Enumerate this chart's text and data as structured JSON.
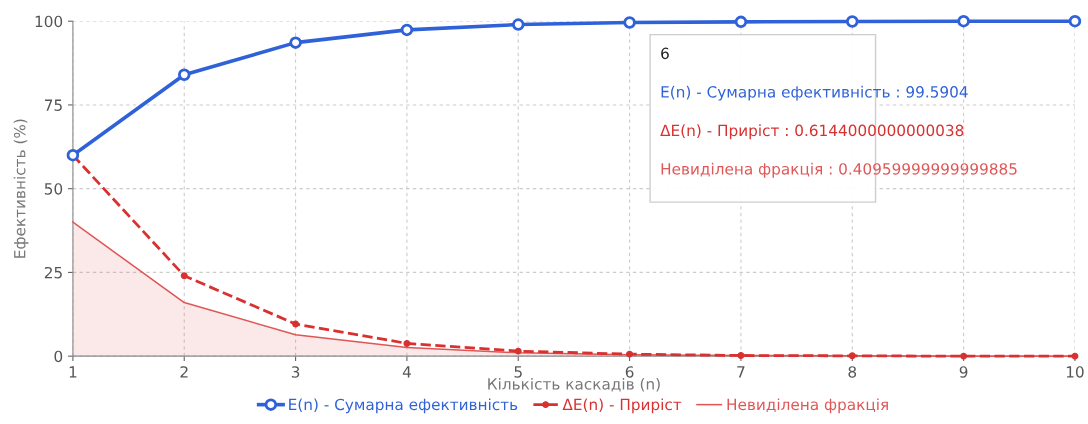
{
  "chart_data": {
    "type": "line",
    "xlabel": "Кількість каскадів (n)",
    "ylabel": "Ефективність (%)",
    "x": [
      1,
      2,
      3,
      4,
      5,
      6,
      7,
      8,
      9,
      10
    ],
    "series": [
      {
        "name": "E(n) - Сумарна ефективність",
        "color": "#2f62d8",
        "marker": "circle",
        "line_style": "solid",
        "values": [
          60,
          84,
          93.6,
          97.4,
          99,
          99.6,
          99.8,
          99.9,
          100,
          100
        ]
      },
      {
        "name": "ΔE(n) - Приріст",
        "color": "#d93030",
        "marker": "circle",
        "line_style": "dashed",
        "values": [
          60,
          24,
          9.6,
          3.8,
          1.5,
          0.6,
          0.2,
          0.1,
          0,
          0
        ]
      },
      {
        "name": "Невиділена фракція",
        "type": "area",
        "color": "#e05555",
        "marker": "none",
        "line_style": "solid",
        "values": [
          40,
          16,
          6.4,
          2.6,
          1,
          0.4,
          0.2,
          0.1,
          0,
          0
        ]
      }
    ],
    "xlim": [
      1,
      10
    ],
    "xticks": [
      1,
      2,
      3,
      4,
      5,
      6,
      7,
      8,
      9,
      10
    ],
    "ylim": [
      0,
      100
    ],
    "yticks": [
      0,
      25,
      50,
      75,
      100
    ],
    "grid": true,
    "legend": "bottom",
    "annotations": [
      "6",
      "E(n) - Сумарна ефективність : 99.5904",
      "ΔE(n) - Приріст : 0.6144000000000038",
      "Невиділена фракція : 0.40959999999999885"
    ]
  }
}
